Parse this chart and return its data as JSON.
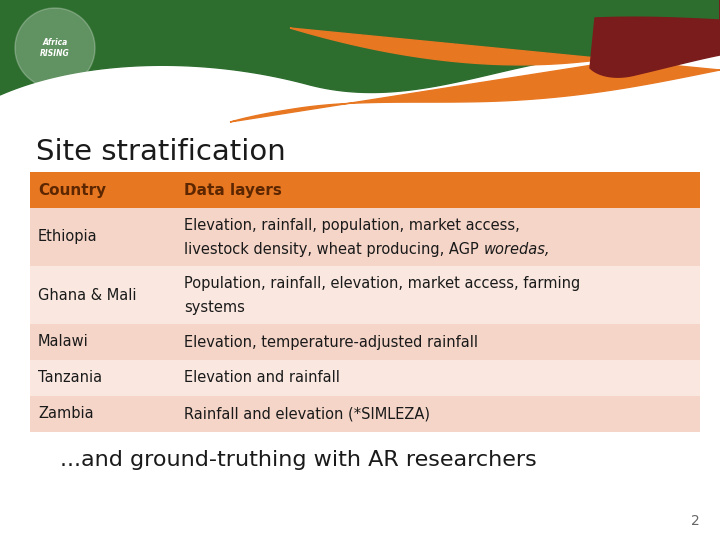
{
  "title": "Site stratification",
  "header": [
    "Country",
    "Data layers"
  ],
  "rows": [
    [
      "Ethiopia",
      [
        "Elevation, rainfall, population, market access,",
        "livestock density, wheat producing, AGP ",
        "woredas,"
      ]
    ],
    [
      "Ghana & Mali",
      [
        "Population, rainfall, elevation, market access, farming",
        "systems",
        ""
      ]
    ],
    [
      "Malawi",
      [
        "Elevation, temperature-adjusted rainfall",
        "",
        ""
      ]
    ],
    [
      "Tanzania",
      [
        "Elevation and rainfall",
        "",
        ""
      ]
    ],
    [
      "Zambia",
      [
        "Rainfall and elevation (*SIMLEZA)",
        "",
        ""
      ]
    ]
  ],
  "footer": "...and ground-truthing with AR researchers",
  "page_number": "2",
  "header_bg": "#E87722",
  "header_text_color": "#5C2700",
  "row_bg_even": "#F5D5C8",
  "row_bg_odd": "#FAE8E0",
  "table_text_color": "#1a1a1a",
  "title_color": "#1a1a1a",
  "footer_color": "#1a1a1a",
  "bg_color": "#ffffff",
  "green": "#2D6E2E",
  "orange": "#E87722",
  "dark_red": "#7B1C1C"
}
